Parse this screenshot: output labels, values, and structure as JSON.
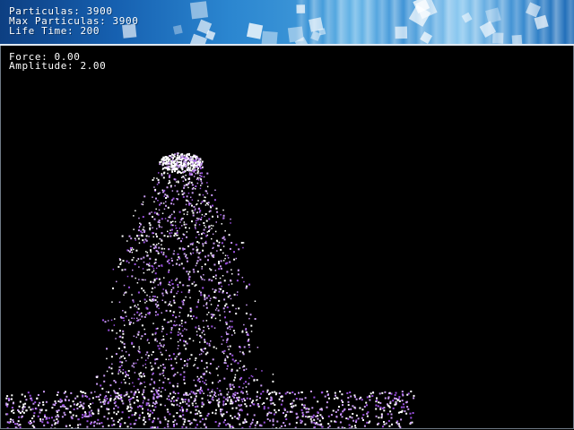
{
  "header": {
    "particles_text": "Particulas: 3900",
    "max_particles_text": "Max Particulas: 3900",
    "life_time_text": "Life Time: 200"
  },
  "stats": {
    "force_text": "Force: 0.00",
    "amplitude_text": "Amplitude: 2.00"
  },
  "colors": {
    "background": "#000000",
    "banner_dark": "#0d3f82",
    "banner_light": "#8cc9f0",
    "particle_white": "#ffffff",
    "particle_purple": "#9a4fe0",
    "particle_violet": "#c79af2"
  }
}
